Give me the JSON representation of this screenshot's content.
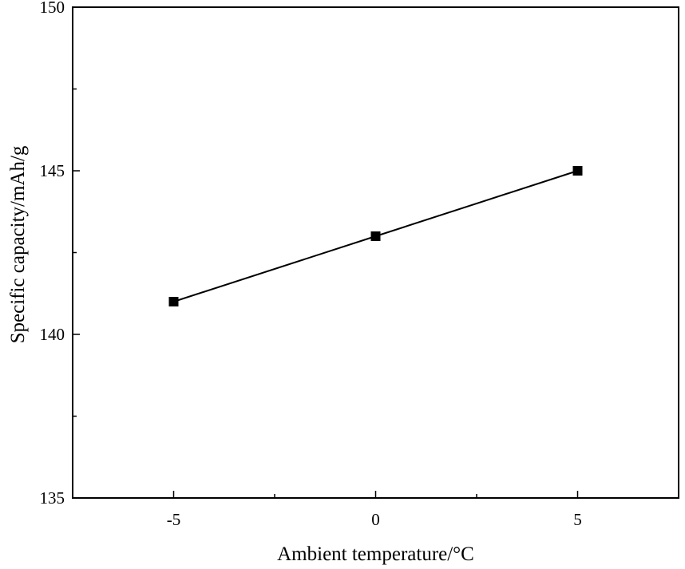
{
  "chart_data": {
    "type": "line",
    "title": "",
    "xlabel": "Ambient temperature/°C",
    "ylabel": "Specific capacity/mAh/g",
    "xlim": [
      -7.5,
      7.5
    ],
    "ylim": [
      135,
      150
    ],
    "x_ticks": [
      -5,
      0,
      5
    ],
    "x_tick_labels": [
      "-5",
      "0",
      "5"
    ],
    "x_minor_ticks": [
      -2.5,
      2.5
    ],
    "y_ticks": [
      135,
      140,
      145,
      150
    ],
    "y_tick_labels": [
      "135",
      "140",
      "145",
      "150"
    ],
    "y_minor_ticks": [
      137.5,
      142.5,
      147.5
    ],
    "grid": false,
    "series": [
      {
        "name": "Specific capacity",
        "marker": "square",
        "color": "#000000",
        "x": [
          -5,
          0,
          5
        ],
        "values": [
          141,
          143,
          145
        ]
      }
    ]
  }
}
